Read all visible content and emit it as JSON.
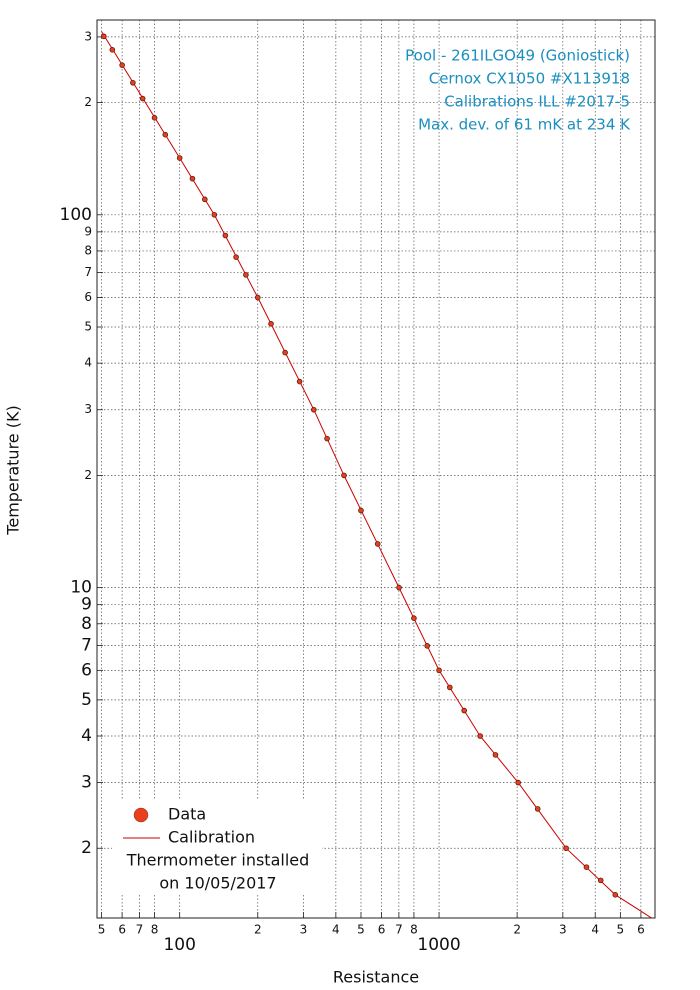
{
  "chart_data": {
    "type": "scatter",
    "xlabel": "Resistance",
    "ylabel": "Temperature (K)",
    "xscale": "log",
    "yscale": "log",
    "grid": true,
    "xlim": [
      48,
      6800
    ],
    "ylim": [
      1.3,
      333
    ],
    "xticks": [
      {
        "value": 50,
        "label": "5"
      },
      {
        "value": 60,
        "label": "6"
      },
      {
        "value": 70,
        "label": "7"
      },
      {
        "value": 80,
        "label": "8"
      },
      100,
      {
        "value": 200,
        "label": "2"
      },
      {
        "value": 300,
        "label": "3"
      },
      {
        "value": 400,
        "label": "4"
      },
      {
        "value": 500,
        "label": "5"
      },
      {
        "value": 600,
        "label": "6"
      },
      {
        "value": 700,
        "label": "7"
      },
      {
        "value": 800,
        "label": "8"
      },
      1000,
      {
        "value": 2000,
        "label": "2"
      },
      {
        "value": 3000,
        "label": "3"
      },
      {
        "value": 4000,
        "label": "4"
      },
      {
        "value": 5000,
        "label": "5"
      },
      {
        "value": 6000,
        "label": "6"
      }
    ],
    "yticks": [
      2,
      3,
      4,
      5,
      6,
      7,
      8,
      9,
      10,
      {
        "value": 20,
        "label": "2"
      },
      {
        "value": 30,
        "label": "3"
      },
      {
        "value": 40,
        "label": "4"
      },
      {
        "value": 50,
        "label": "5"
      },
      {
        "value": 60,
        "label": "6"
      },
      {
        "value": 70,
        "label": "7"
      },
      {
        "value": 80,
        "label": "8"
      },
      {
        "value": 90,
        "label": "9"
      },
      100,
      {
        "value": 200,
        "label": "2"
      },
      {
        "value": 300,
        "label": "3"
      }
    ],
    "series": [
      {
        "name": "Data",
        "color": "#e8401c",
        "kind": "points",
        "x": [
          51,
          55,
          60,
          66,
          72,
          80,
          88,
          100,
          112,
          125,
          136,
          150,
          165,
          180,
          200,
          225,
          255,
          290,
          329,
          370,
          430,
          500,
          580,
          701,
          800,
          900,
          1000,
          1100,
          1250,
          1440,
          1650,
          2018,
          2400,
          3090,
          3700,
          4200,
          4780
        ],
        "values": [
          301,
          277,
          252,
          226,
          205,
          182,
          164,
          142,
          125,
          110,
          100,
          88,
          77,
          69,
          60,
          51,
          42.7,
          35.7,
          30,
          25.1,
          20,
          16.1,
          13.1,
          10,
          8.28,
          6.98,
          6,
          5.4,
          4.68,
          4,
          3.56,
          3,
          2.55,
          2,
          1.78,
          1.64,
          1.5
        ]
      },
      {
        "name": "Calibration",
        "color": "#cc0000",
        "kind": "line",
        "x": [
          50,
          100,
          136,
          200,
          329,
          430,
          701,
          1000,
          1440,
          2018,
          3090,
          4780,
          6600
        ],
        "values": [
          310,
          142,
          100,
          60,
          30,
          20,
          10,
          6,
          4,
          3,
          2,
          1.5,
          1.3
        ]
      }
    ],
    "legend": "lower left",
    "annotations": [
      "Pool - 261ILGO49 (Goniostick)",
      "Cernox CX1050 #X113918",
      "Calibrations ILL #2017-5",
      "Max. dev. of 61 mK at 234 K"
    ],
    "annotation_color": "#1a8fc0",
    "notes": [
      "Thermometer installed",
      "on 10/05/2017"
    ]
  }
}
